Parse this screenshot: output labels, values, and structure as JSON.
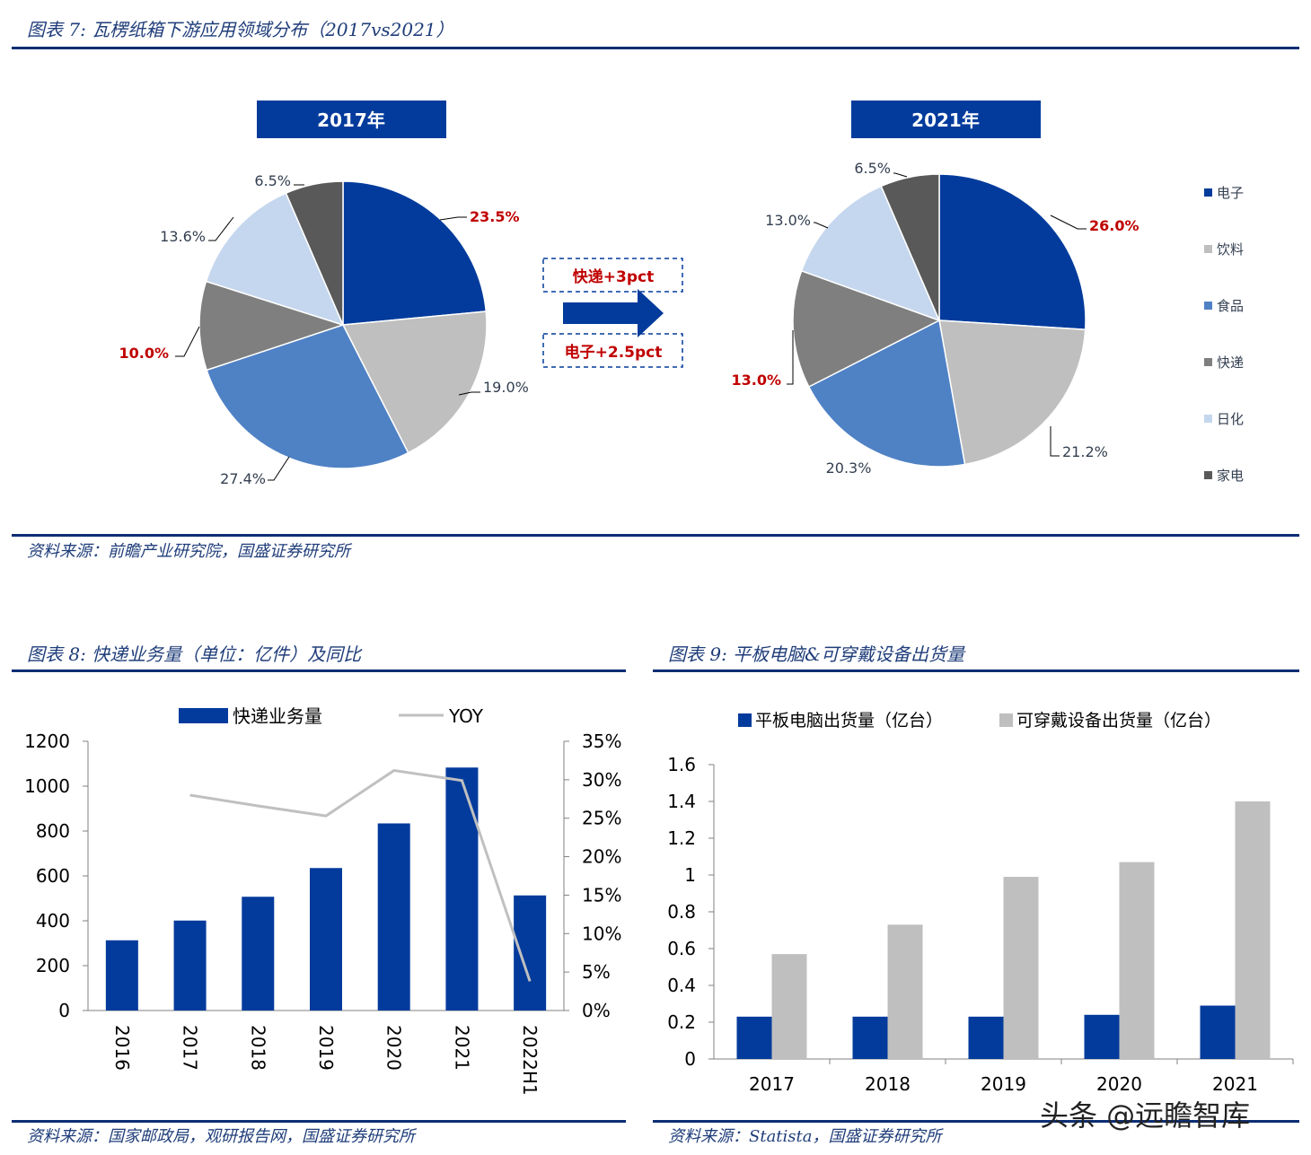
{
  "fig7": {
    "title": "图表 7:  瓦楞纸箱下游应用领域分布（2017vs2021）",
    "source": "资料来源：前瞻产业研究院，国盛证券研究所",
    "pie_2017_header": "2017年",
    "pie_2021_header": "2021年",
    "arrow_top_label": "快递+3pct",
    "arrow_bottom_label": "电子+2.5pct",
    "colors": {
      "电子": "#023b9c",
      "饮料": "#bfbfbf",
      "食品": "#4f81c5",
      "快递": "#7f7f7f",
      "日化": "#c5d7ee",
      "家电": "#595959"
    },
    "highlight_color": "#c00000"
  },
  "fig8": {
    "title": "图表 8:  快递业务量（单位：亿件）及同比",
    "source": "资料来源：国家邮政局，观研报告网，国盛证券研究所",
    "legend_bar": "快递业务量",
    "legend_line": "YOY",
    "bar_color": "#023b9c",
    "line_color": "#c0c0c0"
  },
  "fig9": {
    "title": "图表 9:  平板电脑&可穿戴设备出货量",
    "source": "资料来源：Statista，国盛证券研究所",
    "legend_a": "平板电脑出货量（亿台）",
    "legend_b": "可穿戴设备出货量（亿台）",
    "color_a": "#023b9c",
    "color_b": "#bfbfbf"
  },
  "watermark": "头条 @远瞻智库",
  "chart_data": [
    {
      "type": "pie",
      "title": "2017年",
      "categories": [
        "电子",
        "饮料",
        "食品",
        "快递",
        "日化",
        "家电"
      ],
      "values": [
        23.5,
        19.0,
        27.4,
        10.0,
        13.6,
        6.5
      ],
      "labels": [
        "23.5%",
        "19.0%",
        "27.4%",
        "10.0%",
        "13.6%",
        "6.5%"
      ],
      "highlighted": [
        "电子",
        "快递"
      ]
    },
    {
      "type": "pie",
      "title": "2021年",
      "categories": [
        "电子",
        "饮料",
        "食品",
        "快递",
        "日化",
        "家电"
      ],
      "values": [
        26.0,
        21.2,
        20.3,
        13.0,
        13.0,
        6.5
      ],
      "labels": [
        "26.0%",
        "21.2%",
        "20.3%",
        "13.0%",
        "13.0%",
        "6.5%"
      ],
      "highlighted": [
        "电子",
        "快递"
      ],
      "legend": [
        "电子",
        "饮料",
        "食品",
        "快递",
        "日化",
        "家电"
      ]
    },
    {
      "type": "bar",
      "categories": [
        "2016",
        "2017",
        "2018",
        "2019",
        "2020",
        "2021",
        "2022H1"
      ],
      "series": [
        {
          "name": "快递业务量",
          "type": "bar",
          "axis": "left",
          "values": [
            313,
            401,
            507,
            635,
            834,
            1083,
            513
          ]
        },
        {
          "name": "YOY",
          "type": "line",
          "axis": "right",
          "values": [
            null,
            28.0,
            26.6,
            25.3,
            31.2,
            29.9,
            3.8
          ]
        }
      ],
      "y_ticks": [
        "0",
        "200",
        "400",
        "600",
        "800",
        "1000",
        "1200"
      ],
      "ylim": [
        0,
        1200
      ],
      "y2_ticks": [
        "0%",
        "5%",
        "10%",
        "15%",
        "20%",
        "25%",
        "30%",
        "35%"
      ],
      "y2lim": [
        0,
        35
      ],
      "legend_position": "top"
    },
    {
      "type": "bar",
      "categories": [
        "2017",
        "2018",
        "2019",
        "2020",
        "2021"
      ],
      "series": [
        {
          "name": "平板电脑出货量（亿台）",
          "values": [
            0.23,
            0.23,
            0.23,
            0.24,
            0.29
          ]
        },
        {
          "name": "可穿戴设备出货量（亿台）",
          "values": [
            0.57,
            0.73,
            0.99,
            1.07,
            1.4
          ]
        }
      ],
      "y_ticks": [
        "0",
        "0.2",
        "0.4",
        "0.6",
        "0.8",
        "1",
        "1.2",
        "1.4",
        "1.6"
      ],
      "ylim": [
        0,
        1.6
      ],
      "legend_position": "top"
    }
  ]
}
